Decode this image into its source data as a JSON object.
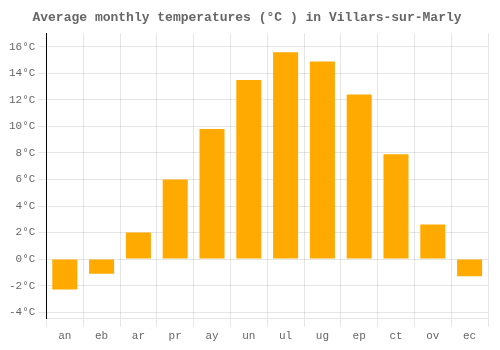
{
  "chart_data": {
    "type": "bar",
    "title": "Average monthly temperatures (°C ) in Villars-sur-Marly",
    "categories": [
      "an",
      "eb",
      "ar",
      "pr",
      "ay",
      "un",
      "ul",
      "ug",
      "ep",
      "ct",
      "ov",
      "ec"
    ],
    "values": [
      -2.3,
      -1.1,
      2.0,
      6.0,
      9.8,
      13.5,
      15.6,
      14.9,
      12.4,
      7.9,
      2.6,
      -1.3
    ],
    "color": "#FFAA00",
    "ylim": [
      -4.5,
      17
    ],
    "yticks": [
      {
        "value": -4,
        "label": "-4°C"
      },
      {
        "value": -2,
        "label": "-2°C"
      },
      {
        "value": 0,
        "label": "0°C"
      },
      {
        "value": 2,
        "label": "2°C"
      },
      {
        "value": 4,
        "label": "4°C"
      },
      {
        "value": 6,
        "label": "6°C"
      },
      {
        "value": 8,
        "label": "8°C"
      },
      {
        "value": 10,
        "label": "10°C"
      },
      {
        "value": 12,
        "label": "12°C"
      },
      {
        "value": 14,
        "label": "14°C"
      },
      {
        "value": 16,
        "label": "16°C"
      }
    ],
    "grid": true
  }
}
